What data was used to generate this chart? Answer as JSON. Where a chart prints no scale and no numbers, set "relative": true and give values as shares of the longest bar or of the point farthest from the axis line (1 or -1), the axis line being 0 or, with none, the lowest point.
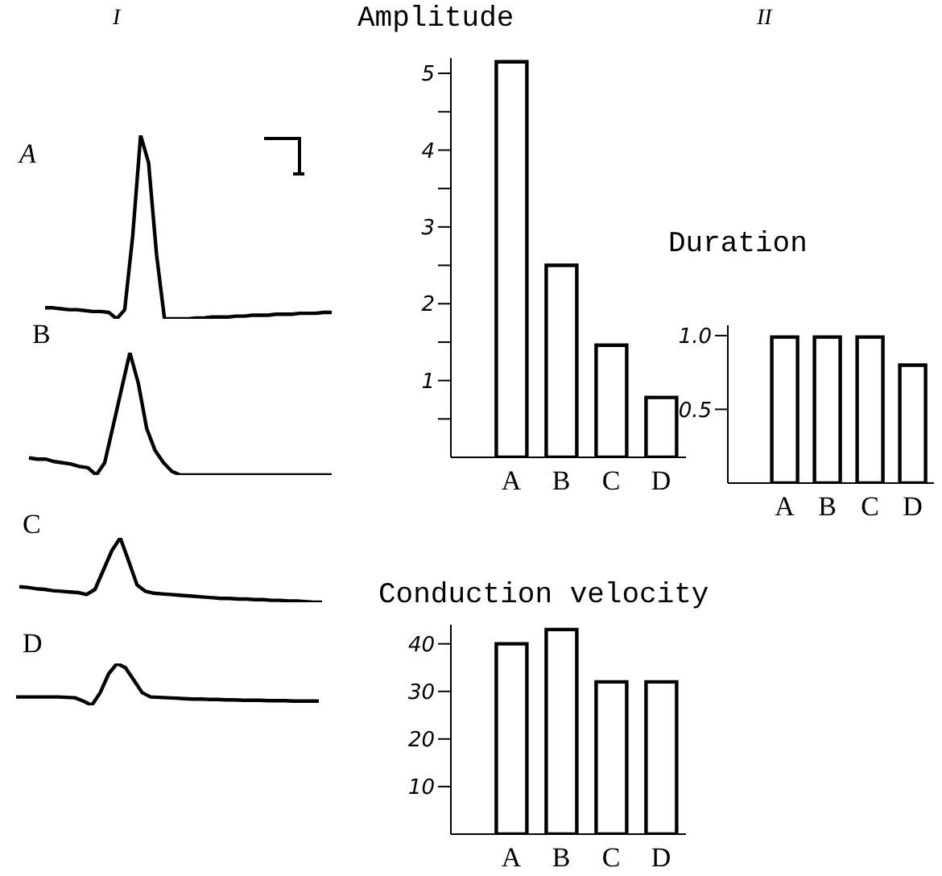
{
  "chart_data": [
    {
      "type": "line",
      "title": "A",
      "annotations": [
        "I"
      ],
      "relative": true,
      "legend": false,
      "grid": false,
      "marker": "none",
      "categories": [
        null,
        null,
        null,
        null,
        null,
        null,
        null,
        null,
        null,
        null,
        null,
        null,
        null,
        null,
        null,
        null,
        null,
        null,
        null,
        null,
        null,
        null,
        null,
        null,
        null,
        null,
        null,
        null,
        null,
        null,
        null,
        null,
        null,
        null,
        null,
        null,
        null
      ],
      "series": [
        {
          "color": "#000000",
          "values": [
            0.06,
            0.06,
            0.055,
            0.05,
            0.05,
            0.045,
            0.04,
            0.04,
            0.035,
            0,
            0.05,
            0.45,
            1,
            0.85,
            0.35,
            0,
            0,
            0,
            0,
            0.005,
            0.005,
            0.01,
            0.01,
            0.01,
            0.015,
            0.015,
            0.02,
            0.02,
            0.02,
            0.025,
            0.025,
            0.025,
            0.03,
            0.03,
            0.03,
            0.035,
            0.035
          ]
        }
      ]
    },
    {
      "type": "line",
      "title": "B",
      "relative": true,
      "legend": false,
      "grid": false,
      "marker": "none",
      "categories": [
        null,
        null,
        null,
        null,
        null,
        null,
        null,
        null,
        null,
        null,
        null,
        null,
        null,
        null,
        null,
        null,
        null,
        null,
        null,
        null,
        null,
        null,
        null,
        null,
        null,
        null,
        null,
        null,
        null,
        null,
        null,
        null,
        null,
        null,
        null,
        null,
        null
      ],
      "series": [
        {
          "color": "#000000",
          "values": [
            0.14,
            0.13,
            0.13,
            0.11,
            0.1,
            0.09,
            0.07,
            0.06,
            0,
            0.1,
            0.4,
            0.7,
            1,
            0.75,
            0.38,
            0.2,
            0.1,
            0.03,
            0,
            0,
            0,
            0,
            0,
            0,
            0,
            0,
            0,
            0,
            0,
            0,
            0,
            0,
            0,
            0,
            0,
            0,
            0
          ]
        }
      ]
    },
    {
      "type": "line",
      "title": "C",
      "relative": true,
      "legend": false,
      "grid": false,
      "marker": "none",
      "categories": [
        null,
        null,
        null,
        null,
        null,
        null,
        null,
        null,
        null,
        null,
        null,
        null,
        null,
        null,
        null,
        null,
        null,
        null,
        null,
        null,
        null,
        null,
        null,
        null,
        null,
        null,
        null,
        null,
        null,
        null,
        null,
        null,
        null,
        null,
        null,
        null,
        null
      ],
      "series": [
        {
          "color": "#000000",
          "values": [
            0.24,
            0.23,
            0.21,
            0.2,
            0.18,
            0.17,
            0.16,
            0.15,
            0.12,
            0.2,
            0.5,
            0.8,
            1,
            0.64,
            0.27,
            0.17,
            0.14,
            0.13,
            0.12,
            0.11,
            0.1,
            0.09,
            0.08,
            0.07,
            0.06,
            0.06,
            0.05,
            0.05,
            0.04,
            0.04,
            0.03,
            0.03,
            0.02,
            0.02,
            0.01,
            0,
            0
          ]
        }
      ]
    },
    {
      "type": "line",
      "title": "D",
      "relative": true,
      "legend": false,
      "grid": false,
      "marker": "none",
      "categories": [
        null,
        null,
        null,
        null,
        null,
        null,
        null,
        null,
        null,
        null,
        null,
        null,
        null,
        null,
        null,
        null,
        null,
        null,
        null,
        null,
        null,
        null,
        null,
        null,
        null,
        null,
        null,
        null,
        null,
        null,
        null,
        null,
        null,
        null,
        null,
        null,
        null
      ],
      "series": [
        {
          "color": "#000000",
          "values": [
            0.2,
            0.2,
            0.2,
            0.2,
            0.2,
            0.2,
            0.19,
            0.18,
            0.1,
            0,
            0.3,
            0.75,
            1,
            0.9,
            0.6,
            0.3,
            0.2,
            0.19,
            0.18,
            0.17,
            0.16,
            0.15,
            0.15,
            0.14,
            0.14,
            0.13,
            0.13,
            0.12,
            0.12,
            0.12,
            0.11,
            0.11,
            0.11,
            0.1,
            0.1,
            0.1,
            0.1
          ]
        }
      ]
    },
    {
      "type": "bar",
      "title": "Amplitude",
      "annotations": [
        "II"
      ],
      "legend": false,
      "grid": false,
      "categories": [
        "A",
        "B",
        "C",
        "D"
      ],
      "values": [
        5.15,
        2.5,
        1.46,
        0.78
      ],
      "color": "#ffffff",
      "ylim": [
        0,
        5.2
      ],
      "yticks": [
        {
          "value": 0.5,
          "label": null
        },
        1,
        {
          "value": 1.5,
          "label": null
        },
        2,
        {
          "value": 2.5,
          "label": null
        },
        3,
        {
          "value": 3.5,
          "label": null
        },
        4,
        {
          "value": 4.5,
          "label": null
        },
        5
      ]
    },
    {
      "type": "bar",
      "title": "Duration",
      "legend": false,
      "grid": false,
      "categories": [
        "A",
        "B",
        "C",
        "D"
      ],
      "values": [
        0.99,
        0.99,
        0.99,
        0.8
      ],
      "color": "#ffffff",
      "ylim": [
        0,
        1.07
      ],
      "yticks": [
        {
          "value": 0.5,
          "label": "0.5"
        },
        {
          "value": 1,
          "label": "1.0"
        }
      ]
    },
    {
      "type": "bar",
      "title": "Conduction velocity",
      "legend": false,
      "grid": false,
      "categories": [
        "A",
        "B",
        "C",
        "D"
      ],
      "values": [
        40,
        43,
        32,
        32
      ],
      "color": "#ffffff",
      "ylim": [
        0,
        44
      ],
      "yticks": [
        10,
        20,
        30,
        40
      ]
    }
  ]
}
